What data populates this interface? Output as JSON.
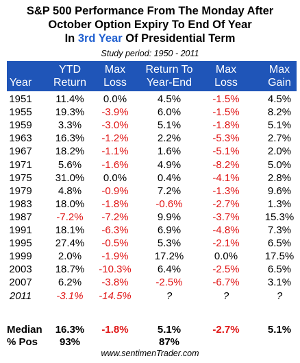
{
  "title": {
    "line1": "S&P 500 Performance From The Monday After",
    "line2": "October Option Expiry To End Of Year",
    "line3_prefix": "In ",
    "line3_accent": "3rd Year",
    "line3_suffix": " Of Presidential Term"
  },
  "study_period": "Study period:  1950 - 2011",
  "accent_color": "#1f55b8",
  "negative_color": "#e01515",
  "chart_data": {
    "type": "table",
    "columns": [
      {
        "top": "",
        "bottom": "Year"
      },
      {
        "top": "YTD",
        "bottom": "Return"
      },
      {
        "top": "Max",
        "bottom": "Loss"
      },
      {
        "top": "Return To",
        "bottom": "Year-End"
      },
      {
        "top": "Max",
        "bottom": "Loss"
      },
      {
        "top": "Max",
        "bottom": "Gain"
      }
    ],
    "rows": [
      [
        "1951",
        "11.4%",
        "0.0%",
        "4.5%",
        "-1.5%",
        "4.5%"
      ],
      [
        "1955",
        "19.3%",
        "-3.9%",
        "6.0%",
        "-1.5%",
        "8.2%"
      ],
      [
        "1959",
        "3.3%",
        "-3.0%",
        "5.1%",
        "-1.8%",
        "5.1%"
      ],
      [
        "1963",
        "16.3%",
        "-1.2%",
        "2.2%",
        "-5.3%",
        "2.7%"
      ],
      [
        "1967",
        "18.2%",
        "-1.1%",
        "1.6%",
        "-5.1%",
        "2.0%"
      ],
      [
        "1971",
        "5.6%",
        "-1.6%",
        "4.9%",
        "-8.2%",
        "5.0%"
      ],
      [
        "1975",
        "31.0%",
        "0.0%",
        "0.4%",
        "-4.1%",
        "2.8%"
      ],
      [
        "1979",
        "4.8%",
        "-0.9%",
        "7.2%",
        "-1.3%",
        "9.6%"
      ],
      [
        "1983",
        "18.0%",
        "-1.8%",
        "-0.6%",
        "-2.7%",
        "1.3%"
      ],
      [
        "1987",
        "-7.2%",
        "-7.2%",
        "9.9%",
        "-3.7%",
        "15.3%"
      ],
      [
        "1991",
        "18.1%",
        "-6.3%",
        "6.9%",
        "-4.8%",
        "7.3%"
      ],
      [
        "1995",
        "27.4%",
        "-0.5%",
        "5.3%",
        "-2.1%",
        "6.5%"
      ],
      [
        "1999",
        "2.0%",
        "-1.9%",
        "17.2%",
        "0.0%",
        "17.5%"
      ],
      [
        "2003",
        "18.7%",
        "-10.3%",
        "6.4%",
        "-2.5%",
        "6.5%"
      ],
      [
        "2007",
        "6.2%",
        "-3.8%",
        "-2.5%",
        "-6.7%",
        "3.1%"
      ],
      [
        "2011",
        "-3.1%",
        "-14.5%",
        "?",
        "?",
        "?"
      ]
    ],
    "italic_rows": [
      15
    ],
    "summary": [
      [
        "Median",
        "16.3%",
        "-1.8%",
        "5.1%",
        "-2.7%",
        "5.1%"
      ],
      [
        "% Pos",
        "93%",
        "",
        "87%",
        "",
        ""
      ]
    ]
  },
  "footer": "www.sentimenTrader.com"
}
